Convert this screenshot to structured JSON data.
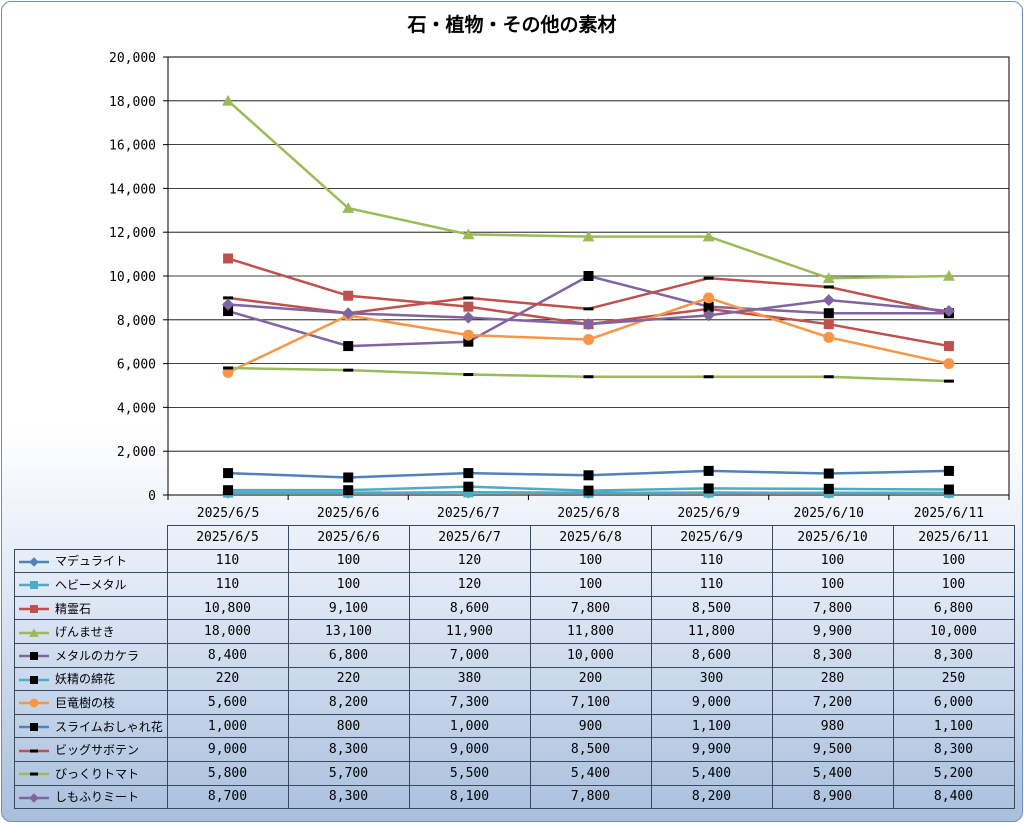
{
  "chart_data": {
    "type": "line",
    "title": "石・植物・その他の素材",
    "xlabel": "",
    "ylabel": "",
    "ylim": [
      0,
      20000
    ],
    "yticks": [
      "0",
      "2,000",
      "4,000",
      "6,000",
      "8,000",
      "10,000",
      "12,000",
      "14,000",
      "16,000",
      "18,000",
      "20,000"
    ],
    "grid": true,
    "legend": "data-table",
    "categories": [
      "2025/6/5",
      "2025/6/6",
      "2025/6/7",
      "2025/6/8",
      "2025/6/9",
      "2025/6/10",
      "2025/6/11"
    ],
    "series": [
      {
        "name": "マデュライト",
        "color": "#4f81bd",
        "marker": "diamond",
        "values": [
          110,
          100,
          120,
          100,
          110,
          100,
          100
        ],
        "labels": [
          "110",
          "100",
          "120",
          "100",
          "110",
          "100",
          "100"
        ]
      },
      {
        "name": "ヘビーメタル",
        "color": "#4bacc6",
        "marker": "square",
        "values": [
          110,
          100,
          120,
          100,
          110,
          100,
          100
        ],
        "labels": [
          "110",
          "100",
          "120",
          "100",
          "110",
          "100",
          "100"
        ]
      },
      {
        "name": "精霊石",
        "color": "#c0504d",
        "marker": "square",
        "values": [
          10800,
          9100,
          8600,
          7800,
          8500,
          7800,
          6800
        ],
        "labels": [
          "10,800",
          "9,100",
          "8,600",
          "7,800",
          "8,500",
          "7,800",
          "6,800"
        ]
      },
      {
        "name": "げんませき",
        "color": "#9bbb59",
        "marker": "triangle",
        "values": [
          18000,
          13100,
          11900,
          11800,
          11800,
          9900,
          10000
        ],
        "labels": [
          "18,000",
          "13,100",
          "11,900",
          "11,800",
          "11,800",
          "9,900",
          "10,000"
        ]
      },
      {
        "name": "メタルのカケラ",
        "color": "#8064a2",
        "marker": "blacksquare",
        "values": [
          8400,
          6800,
          7000,
          10000,
          8600,
          8300,
          8300
        ],
        "labels": [
          "8,400",
          "6,800",
          "7,000",
          "10,000",
          "8,600",
          "8,300",
          "8,300"
        ]
      },
      {
        "name": "妖精の綿花",
        "color": "#4bacc6",
        "marker": "blacksquare",
        "values": [
          220,
          220,
          380,
          200,
          300,
          280,
          250
        ],
        "labels": [
          "220",
          "220",
          "380",
          "200",
          "300",
          "280",
          "250"
        ]
      },
      {
        "name": "巨竜樹の枝",
        "color": "#f79646",
        "marker": "circle",
        "values": [
          5600,
          8200,
          7300,
          7100,
          9000,
          7200,
          6000
        ],
        "labels": [
          "5,600",
          "8,200",
          "7,300",
          "7,100",
          "9,000",
          "7,200",
          "6,000"
        ]
      },
      {
        "name": "スライムおしゃれ花",
        "color": "#4f81bd",
        "marker": "blacksquare",
        "values": [
          1000,
          800,
          1000,
          900,
          1100,
          980,
          1100
        ],
        "labels": [
          "1,000",
          "800",
          "1,000",
          "900",
          "1,100",
          "980",
          "1,100"
        ]
      },
      {
        "name": "ビッグサボテン",
        "color": "#c0504d",
        "marker": "dash",
        "values": [
          9000,
          8300,
          9000,
          8500,
          9900,
          9500,
          8300
        ],
        "labels": [
          "9,000",
          "8,300",
          "9,000",
          "8,500",
          "9,900",
          "9,500",
          "8,300"
        ]
      },
      {
        "name": "びっくりトマト",
        "color": "#9bbb59",
        "marker": "dash",
        "values": [
          5800,
          5700,
          5500,
          5400,
          5400,
          5400,
          5200
        ],
        "labels": [
          "5,800",
          "5,700",
          "5,500",
          "5,400",
          "5,400",
          "5,400",
          "5,200"
        ]
      },
      {
        "name": "しもふりミート",
        "color": "#8064a2",
        "marker": "diamond",
        "values": [
          8700,
          8300,
          8100,
          7800,
          8200,
          8900,
          8400
        ],
        "labels": [
          "8,700",
          "8,300",
          "8,100",
          "7,800",
          "8,200",
          "8,900",
          "8,400"
        ]
      }
    ]
  }
}
